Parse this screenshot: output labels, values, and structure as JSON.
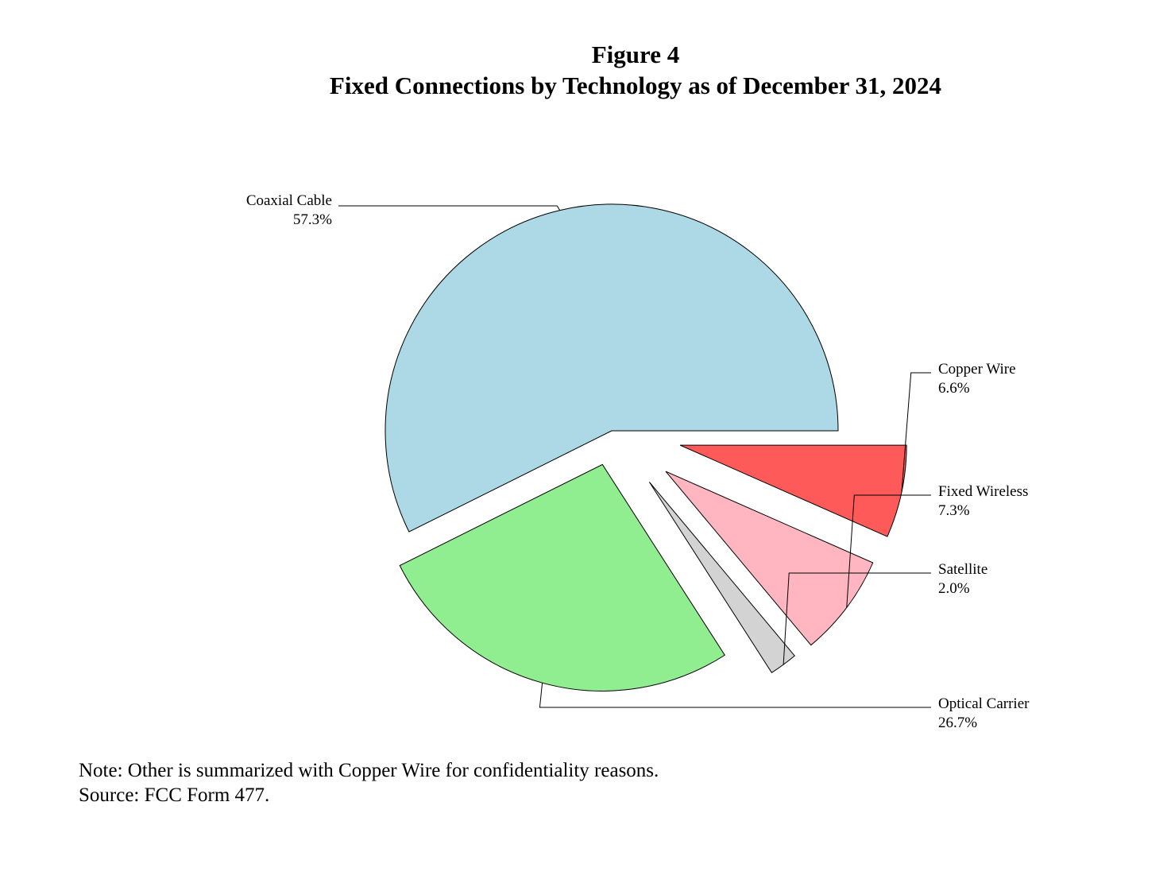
{
  "chart_data": {
    "type": "pie",
    "title": "Figure 4",
    "subtitle": "Fixed Connections by Technology as of December 31, 2024",
    "slices": [
      {
        "label": "Copper Wire",
        "value": 6.6,
        "value_label": "6.6%",
        "color": "#ff5a5a",
        "exploded": true
      },
      {
        "label": "Fixed Wireless",
        "value": 7.3,
        "value_label": "7.3%",
        "color": "#ffb6c1",
        "exploded": true
      },
      {
        "label": "Satellite",
        "value": 2.0,
        "value_label": "2.0%",
        "color": "#d3d3d3",
        "exploded": true
      },
      {
        "label": "Optical Carrier",
        "value": 26.7,
        "value_label": "26.7%",
        "color": "#90ee90",
        "exploded": true
      },
      {
        "label": "Coaxial Cable",
        "value": 57.3,
        "value_label": "57.3%",
        "color": "#add8e6",
        "exploded": false
      }
    ],
    "start_angle_deg": 0,
    "direction": "clockwise",
    "legend": "none"
  },
  "footnotes": {
    "note": "Note: Other is summarized with Copper Wire for confidentiality reasons.",
    "source": "Source: FCC Form 477."
  }
}
